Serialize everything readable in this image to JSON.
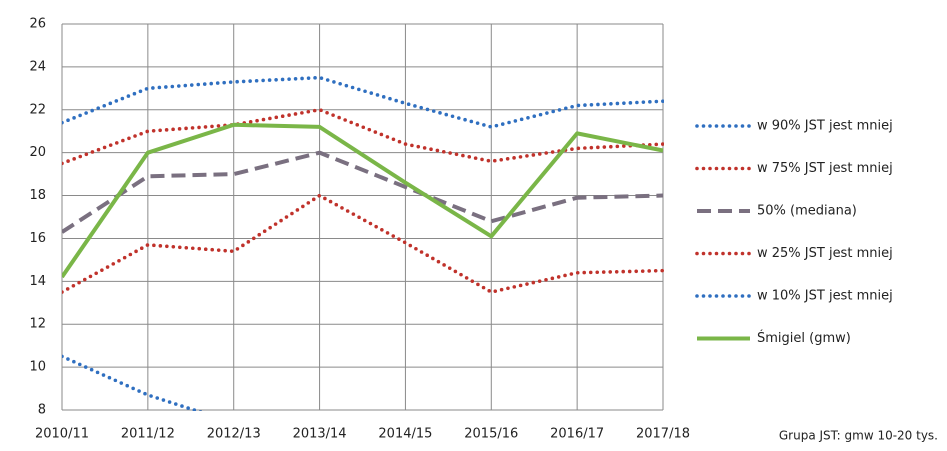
{
  "chart_data": {
    "type": "line",
    "categories": [
      "2010/11",
      "2011/12",
      "2012/13",
      "2013/14",
      "2014/15",
      "2015/16",
      "2016/17",
      "2017/18"
    ],
    "series": [
      {
        "name": "w 90% JST jest mniej",
        "color": "#2f6fc0",
        "style": "dotted",
        "values": [
          21.4,
          23.0,
          23.3,
          23.5,
          22.3,
          21.2,
          22.2,
          22.4
        ]
      },
      {
        "name": "w 75% JST jest mniej",
        "color": "#c0322b",
        "style": "dotted",
        "values": [
          19.5,
          21.0,
          21.3,
          22.0,
          20.4,
          19.6,
          20.2,
          20.4
        ]
      },
      {
        "name": "50% (mediana)",
        "color": "#7a7080",
        "style": "dashed",
        "values": [
          16.3,
          18.9,
          19.0,
          20.0,
          18.4,
          16.8,
          17.9,
          18.0
        ]
      },
      {
        "name": "w 25% JST jest mniej",
        "color": "#c0322b",
        "style": "dotted",
        "values": [
          13.5,
          15.7,
          15.4,
          18.0,
          15.8,
          13.5,
          14.4,
          14.5
        ]
      },
      {
        "name": "w 10% JST jest mniej",
        "color": "#2f6fc0",
        "style": "dotted",
        "values": [
          10.5,
          8.7,
          7.4,
          null,
          null,
          null,
          null,
          null
        ]
      },
      {
        "name": "Śmigiel (gmw)",
        "color": "#7ab648",
        "style": "solid",
        "values": [
          14.2,
          20.0,
          21.3,
          21.2,
          18.6,
          16.1,
          20.9,
          20.1
        ]
      }
    ],
    "ylim": [
      8,
      26
    ],
    "yticks": [
      8,
      10,
      12,
      14,
      16,
      18,
      20,
      22,
      24,
      26
    ],
    "grid": true,
    "footnote": "Grupa JST: gmw 10-20 tys."
  }
}
